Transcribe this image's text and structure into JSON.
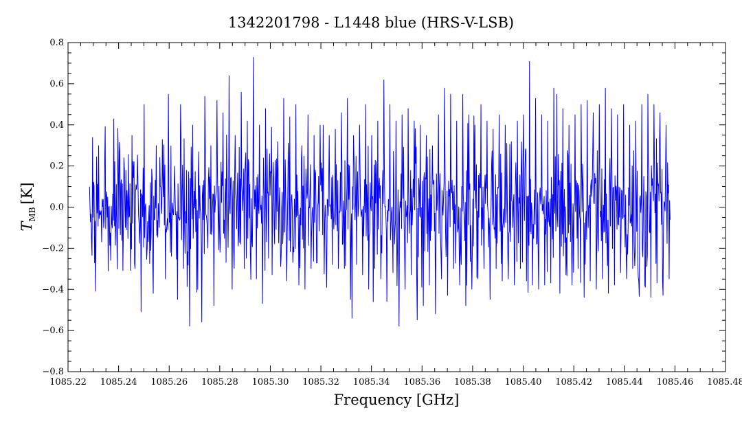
{
  "chart_data": {
    "type": "line",
    "title": "1342201798 - L1448 blue (HRS-V-LSB)",
    "xlabel": "Frequency [GHz]",
    "ylabel_main": "T",
    "ylabel_sub": "MB",
    "ylabel_unit": "[K]",
    "xlim": [
      1085.22,
      1085.48
    ],
    "ylim": [
      -0.8,
      0.8
    ],
    "x_ticks": [
      1085.22,
      1085.24,
      1085.26,
      1085.28,
      1085.3,
      1085.32,
      1085.34,
      1085.36,
      1085.38,
      1085.4,
      1085.42,
      1085.44,
      1085.46,
      1085.48
    ],
    "x_tick_labels": [
      "1085.22",
      "1085.24",
      "1085.26",
      "1085.28",
      "1085.30",
      "1085.32",
      "1085.34",
      "1085.36",
      "1085.38",
      "1085.40",
      "1085.42",
      "1085.44",
      "1085.46",
      "1085.48"
    ],
    "y_ticks": [
      -0.8,
      -0.6,
      -0.4,
      -0.2,
      0.0,
      0.2,
      0.4,
      0.6,
      0.8
    ],
    "y_tick_labels": [
      "−0.8",
      "−0.6",
      "−0.4",
      "−0.2",
      "0.0",
      "0.2",
      "0.4",
      "0.6",
      "0.8"
    ],
    "grid": false,
    "line_color": "#0000ff",
    "series": [
      {
        "x_start": 1085.2285,
        "x_step": 0.0002,
        "x_end": 1085.458,
        "rms": 0.2,
        "values": [
          0.1,
          0.34,
          -0.41,
          0.3,
          -0.17,
          0.22,
          0.05,
          -0.26,
          0.43,
          -0.15,
          0.27,
          -0.31,
          0.18,
          -0.05,
          0.35,
          -0.3,
          0.09,
          -0.51,
          0.5,
          -0.2,
          0.12,
          -0.42,
          0.3,
          -0.1,
          0.33,
          -0.35,
          0.55,
          -0.24,
          0.2,
          -0.45,
          0.5,
          -0.3,
          0.18,
          -0.58,
          0.4,
          -0.12,
          0.27,
          -0.56,
          0.54,
          -0.2,
          0.3,
          -0.48,
          0.52,
          -0.22,
          0.46,
          -0.27,
          0.64,
          -0.4,
          0.35,
          -0.19,
          0.56,
          -0.3,
          0.42,
          -0.23,
          0.73,
          -0.35,
          0.4,
          -0.47,
          0.48,
          -0.25,
          0.39,
          -0.18,
          0.32,
          -0.29,
          0.53,
          -0.36,
          0.44,
          -0.27,
          0.5,
          -0.38,
          0.3,
          -0.4,
          0.45,
          -0.3,
          0.35,
          -0.27,
          0.4,
          -0.43,
          0.4,
          -0.25,
          0.35,
          -0.28,
          0.38,
          -0.3,
          0.46,
          -0.3,
          0.53,
          -0.45,
          0.35,
          -0.28,
          0.4,
          -0.33,
          0.5,
          -0.4,
          0.35,
          -0.3,
          0.42,
          -0.35,
          0.62,
          -0.46,
          0.5,
          -0.32,
          0.42,
          -0.58,
          0.45,
          -0.4,
          0.48,
          -0.33,
          0.42,
          -0.55,
          0.4,
          -0.48,
          0.35,
          -0.38,
          0.3,
          -0.52,
          0.45,
          -0.35,
          0.58,
          -0.43,
          0.55,
          -0.3,
          0.42,
          -0.38,
          0.55,
          -0.48,
          0.45,
          -0.4,
          0.4,
          -0.35,
          0.5,
          -0.3,
          0.42,
          -0.45,
          0.38,
          -0.3,
          0.45,
          -0.36,
          0.4,
          -0.35,
          0.32,
          -0.38,
          0.42,
          -0.3,
          0.45,
          -0.36,
          0.71,
          -0.38,
          0.53,
          -0.4,
          0.45,
          -0.38,
          0.42,
          -0.37,
          0.58,
          -0.34,
          0.55,
          -0.42,
          0.48,
          -0.33,
          0.4,
          -0.38,
          0.45,
          -0.3,
          0.5,
          -0.44,
          0.52,
          -0.36,
          0.46,
          -0.4,
          0.5,
          -0.35,
          0.58,
          -0.42,
          0.48,
          -0.38,
          0.45,
          -0.32,
          0.5,
          -0.35,
          0.4,
          -0.3,
          0.42,
          -0.36,
          0.5,
          -0.38,
          0.55,
          -0.44,
          0.5,
          -0.37,
          0.46,
          -0.43,
          0.4,
          -0.35
        ]
      }
    ]
  }
}
